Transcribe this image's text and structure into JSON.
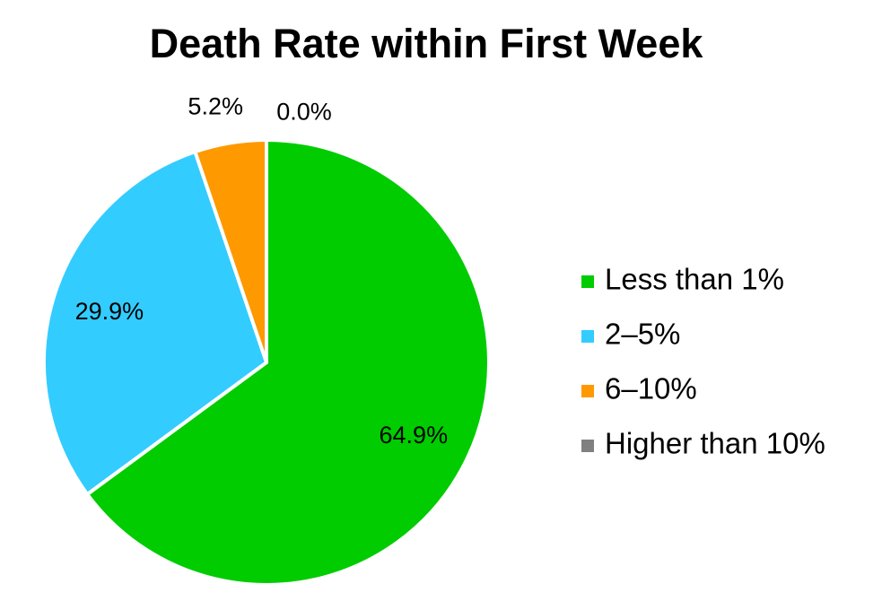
{
  "chart_data": {
    "type": "pie",
    "title": "Death Rate within First Week",
    "slices": [
      {
        "label": "Less than 1%",
        "value": 64.9,
        "display": "64.9%",
        "color": "#00cc00"
      },
      {
        "label": "2–5%",
        "value": 29.9,
        "display": "29.9%",
        "color": "#33ccff"
      },
      {
        "label": "6–10%",
        "value": 5.2,
        "display": "5.2%",
        "color": "#ff9900"
      },
      {
        "label": "Higher than 10%",
        "value": 0.0,
        "display": "0.0%",
        "color": "#808080"
      }
    ],
    "start_angle": "12 o'clock",
    "direction": "clockwise",
    "legend_position": "right",
    "slice_border_color": "#ffffff"
  }
}
